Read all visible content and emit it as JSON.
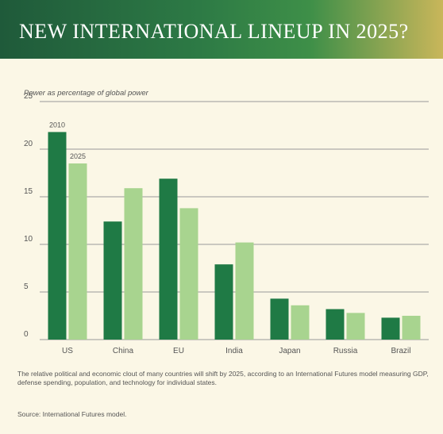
{
  "chart_data": {
    "type": "bar",
    "title": "NEW INTERNATIONAL LINEUP IN 2025?",
    "ylabel": "Power as percentage of global power",
    "xlabel": "",
    "categories": [
      "US",
      "China",
      "EU",
      "India",
      "Japan",
      "Russia",
      "Brazil"
    ],
    "series": [
      {
        "name": "2010",
        "values": [
          21.8,
          12.4,
          16.9,
          7.9,
          4.3,
          3.2,
          2.3
        ]
      },
      {
        "name": "2025",
        "values": [
          18.5,
          15.9,
          13.8,
          10.2,
          3.6,
          2.8,
          2.5
        ]
      }
    ],
    "ylim": [
      0,
      25
    ],
    "yticks": [
      0,
      5,
      10,
      15,
      20,
      25
    ],
    "grid": true,
    "legend": "inline labels above first category bars",
    "colors": {
      "2010": "#1f7a45",
      "2025": "#a8d48f"
    }
  },
  "note": "The relative political and economic clout of many countries will shift by 2025, according to an International Futures model measuring GDP, defense spending, population, and technology for individual states.",
  "source": "Source: International Futures model."
}
